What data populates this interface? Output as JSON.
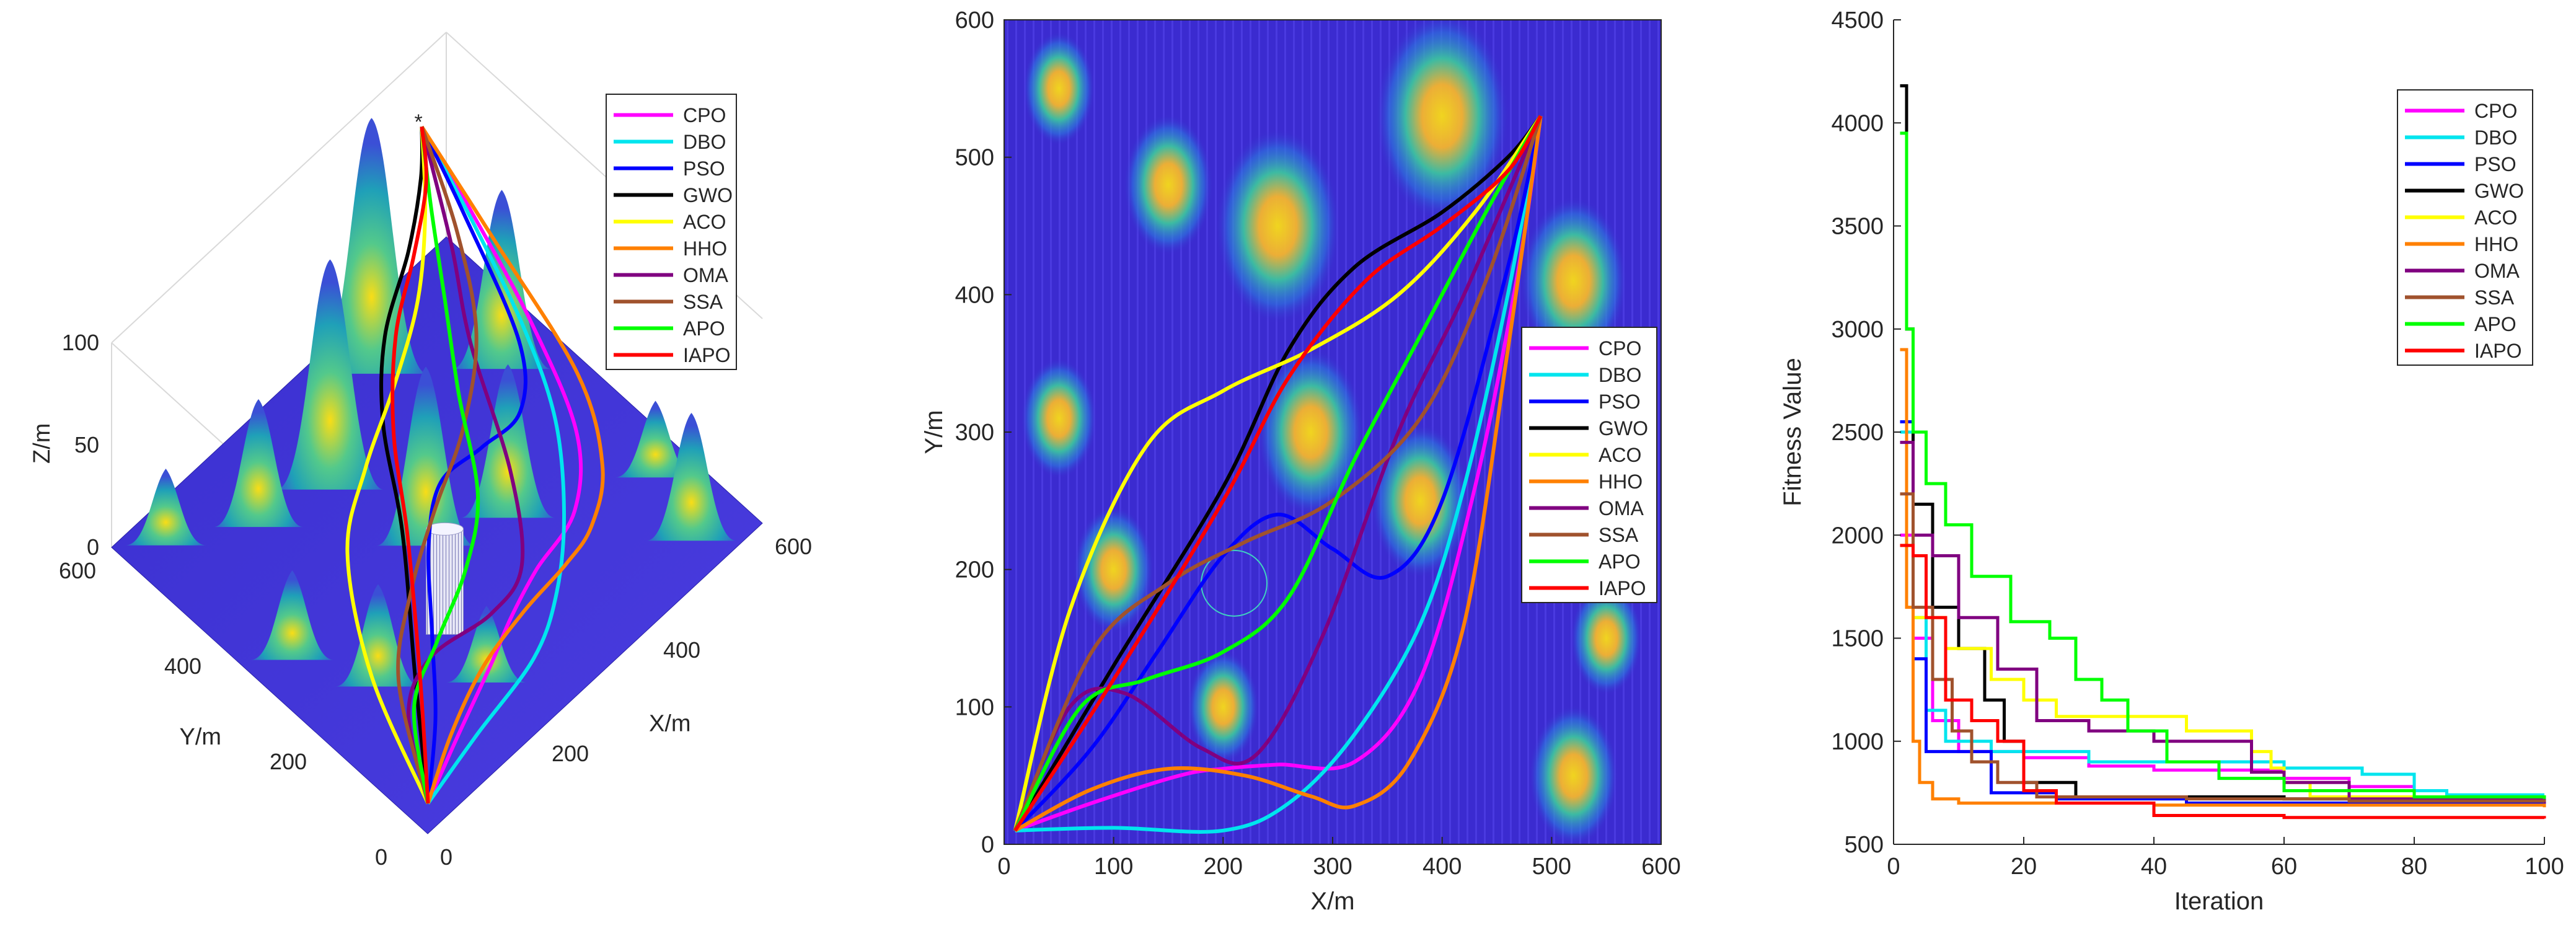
{
  "figure": {
    "legend_labels": [
      "CPO",
      "DBO",
      "PSO",
      "GWO",
      "ACO",
      "HHO",
      "OMA",
      "SSA",
      "APO",
      "IAPO"
    ],
    "series_colors": {
      "CPO": "#ff00ff",
      "DBO": "#00e5ee",
      "PSO": "#0000ff",
      "GWO": "#000000",
      "ACO": "#ffff00",
      "HHO": "#ff8000",
      "OMA": "#800080",
      "SSA": "#a0522d",
      "APO": "#00ff00",
      "IAPO": "#ff0000"
    },
    "terrain_low_color": "#3b2bd0",
    "terrain_high_color": "#f9dd16",
    "obstacle_color": "#e6e6f5"
  },
  "chart_data": [
    {
      "type": "surface3d",
      "xlabel": "X/m",
      "ylabel": "Y/m",
      "zlabel": "Z/m",
      "xticks": [
        "0",
        "200",
        "400",
        "600"
      ],
      "yticks": [
        "0",
        "200",
        "400",
        "600"
      ],
      "zticks": [
        "0",
        "50",
        "100"
      ],
      "xlim": [
        0,
        600
      ],
      "ylim": [
        0,
        600
      ],
      "zlim": [
        0,
        100
      ],
      "legend": [
        "CPO",
        "DBO",
        "PSO",
        "GWO",
        "ACO",
        "HHO",
        "OMA",
        "SSA",
        "APO",
        "IAPO"
      ],
      "legend_position": "top-right",
      "start": [
        10,
        10
      ],
      "goal": [
        490,
        530
      ],
      "peaks": [
        {
          "x": 50,
          "y": 550,
          "h": 30
        },
        {
          "x": 150,
          "y": 480,
          "h": 50
        },
        {
          "x": 250,
          "y": 450,
          "h": 90
        },
        {
          "x": 400,
          "y": 530,
          "h": 100
        },
        {
          "x": 520,
          "y": 410,
          "h": 70
        },
        {
          "x": 50,
          "y": 310,
          "h": 35
        },
        {
          "x": 280,
          "y": 300,
          "h": 70
        },
        {
          "x": 380,
          "y": 250,
          "h": 60
        },
        {
          "x": 100,
          "y": 200,
          "h": 40
        },
        {
          "x": 200,
          "y": 100,
          "h": 30
        },
        {
          "x": 520,
          "y": 50,
          "h": 50
        },
        {
          "x": 550,
          "y": 150,
          "h": 30
        }
      ]
    },
    {
      "type": "line",
      "xlabel": "X/m",
      "ylabel": "Y/m",
      "xlim": [
        0,
        600
      ],
      "ylim": [
        0,
        600
      ],
      "xticks": [
        "0",
        "100",
        "200",
        "300",
        "400",
        "500",
        "600"
      ],
      "yticks": [
        "0",
        "100",
        "200",
        "300",
        "400",
        "500",
        "600"
      ],
      "legend_position": "middle-right",
      "obstacle": {
        "cx": 210,
        "cy": 190,
        "r": 30
      },
      "series": [
        {
          "name": "CPO",
          "points": [
            [
              10,
              10
            ],
            [
              80,
              30
            ],
            [
              160,
              50
            ],
            [
              200,
              55
            ],
            [
              250,
              58
            ],
            [
              320,
              60
            ],
            [
              380,
              120
            ],
            [
              430,
              260
            ],
            [
              470,
              420
            ],
            [
              490,
              530
            ]
          ]
        },
        {
          "name": "DBO",
          "points": [
            [
              10,
              10
            ],
            [
              100,
              12
            ],
            [
              200,
              10
            ],
            [
              260,
              30
            ],
            [
              320,
              80
            ],
            [
              380,
              160
            ],
            [
              420,
              260
            ],
            [
              460,
              400
            ],
            [
              490,
              530
            ]
          ]
        },
        {
          "name": "PSO",
          "points": [
            [
              10,
              10
            ],
            [
              80,
              70
            ],
            [
              140,
              140
            ],
            [
              200,
              210
            ],
            [
              250,
              240
            ],
            [
              300,
              215
            ],
            [
              350,
              195
            ],
            [
              400,
              250
            ],
            [
              460,
              420
            ],
            [
              490,
              530
            ]
          ]
        },
        {
          "name": "GWO",
          "points": [
            [
              10,
              10
            ],
            [
              100,
              130
            ],
            [
              200,
              260
            ],
            [
              260,
              360
            ],
            [
              320,
              420
            ],
            [
              400,
              460
            ],
            [
              460,
              500
            ],
            [
              490,
              530
            ]
          ]
        },
        {
          "name": "ACO",
          "points": [
            [
              10,
              10
            ],
            [
              60,
              170
            ],
            [
              130,
              290
            ],
            [
              200,
              330
            ],
            [
              280,
              360
            ],
            [
              360,
              400
            ],
            [
              430,
              460
            ],
            [
              490,
              530
            ]
          ]
        },
        {
          "name": "HHO",
          "points": [
            [
              10,
              10
            ],
            [
              80,
              40
            ],
            [
              150,
              55
            ],
            [
              220,
              50
            ],
            [
              280,
              35
            ],
            [
              320,
              28
            ],
            [
              370,
              60
            ],
            [
              420,
              160
            ],
            [
              460,
              360
            ],
            [
              490,
              530
            ]
          ]
        },
        {
          "name": "OMA",
          "points": [
            [
              10,
              10
            ],
            [
              60,
              100
            ],
            [
              110,
              110
            ],
            [
              180,
              70
            ],
            [
              230,
              65
            ],
            [
              290,
              150
            ],
            [
              360,
              300
            ],
            [
              420,
              400
            ],
            [
              490,
              530
            ]
          ]
        },
        {
          "name": "SSA",
          "points": [
            [
              10,
              10
            ],
            [
              80,
              140
            ],
            [
              150,
              190
            ],
            [
              220,
              220
            ],
            [
              300,
              250
            ],
            [
              380,
              310
            ],
            [
              440,
              410
            ],
            [
              490,
              530
            ]
          ]
        },
        {
          "name": "APO",
          "points": [
            [
              10,
              10
            ],
            [
              70,
              100
            ],
            [
              130,
              120
            ],
            [
              200,
              140
            ],
            [
              260,
              180
            ],
            [
              320,
              280
            ],
            [
              380,
              370
            ],
            [
              440,
              460
            ],
            [
              490,
              530
            ]
          ]
        },
        {
          "name": "IAPO",
          "points": [
            [
              10,
              10
            ],
            [
              100,
              120
            ],
            [
              200,
              250
            ],
            [
              260,
              340
            ],
            [
              330,
              410
            ],
            [
              400,
              450
            ],
            [
              460,
              490
            ],
            [
              490,
              530
            ]
          ]
        }
      ]
    },
    {
      "type": "line",
      "xlabel": "Iteration",
      "ylabel": "Fitness Value",
      "xlim": [
        0,
        100
      ],
      "ylim": [
        500,
        4500
      ],
      "xticks": [
        "0",
        "20",
        "40",
        "60",
        "80",
        "100"
      ],
      "yticks": [
        "500",
        "1000",
        "1500",
        "2000",
        "2500",
        "3000",
        "3500",
        "4000",
        "4500"
      ],
      "legend_position": "top-right",
      "series": [
        {
          "name": "CPO",
          "points": [
            [
              1,
              2000
            ],
            [
              3,
              1500
            ],
            [
              6,
              1100
            ],
            [
              10,
              950
            ],
            [
              20,
              920
            ],
            [
              30,
              880
            ],
            [
              40,
              860
            ],
            [
              60,
              820
            ],
            [
              70,
              780
            ],
            [
              80,
              720
            ],
            [
              100,
              720
            ]
          ]
        },
        {
          "name": "DBO",
          "points": [
            [
              1,
              2500
            ],
            [
              3,
              1600
            ],
            [
              5,
              1150
            ],
            [
              8,
              1000
            ],
            [
              15,
              950
            ],
            [
              30,
              900
            ],
            [
              60,
              870
            ],
            [
              72,
              840
            ],
            [
              80,
              760
            ],
            [
              85,
              740
            ],
            [
              100,
              740
            ]
          ]
        },
        {
          "name": "PSO",
          "points": [
            [
              1,
              2550
            ],
            [
              3,
              1400
            ],
            [
              5,
              950
            ],
            [
              10,
              950
            ],
            [
              15,
              750
            ],
            [
              25,
              720
            ],
            [
              45,
              700
            ],
            [
              60,
              700
            ],
            [
              100,
              690
            ]
          ]
        },
        {
          "name": "GWO",
          "points": [
            [
              1,
              4180
            ],
            [
              2,
              3000
            ],
            [
              3,
              2150
            ],
            [
              6,
              1650
            ],
            [
              10,
              1450
            ],
            [
              14,
              1200
            ],
            [
              17,
              1000
            ],
            [
              20,
              800
            ],
            [
              28,
              730
            ],
            [
              60,
              720
            ],
            [
              100,
              710
            ]
          ]
        },
        {
          "name": "ACO",
          "points": [
            [
              1,
              1950
            ],
            [
              3,
              1600
            ],
            [
              8,
              1450
            ],
            [
              15,
              1300
            ],
            [
              20,
              1200
            ],
            [
              25,
              1120
            ],
            [
              38,
              1120
            ],
            [
              45,
              1050
            ],
            [
              55,
              950
            ],
            [
              58,
              870
            ],
            [
              60,
              800
            ],
            [
              64,
              730
            ],
            [
              100,
              700
            ]
          ]
        },
        {
          "name": "HHO",
          "points": [
            [
              1,
              2900
            ],
            [
              2,
              1650
            ],
            [
              3,
              1000
            ],
            [
              4,
              800
            ],
            [
              6,
              720
            ],
            [
              10,
              700
            ],
            [
              40,
              690
            ],
            [
              100,
              680
            ]
          ]
        },
        {
          "name": "OMA",
          "points": [
            [
              1,
              2450
            ],
            [
              3,
              2000
            ],
            [
              6,
              1900
            ],
            [
              10,
              1600
            ],
            [
              16,
              1350
            ],
            [
              22,
              1100
            ],
            [
              30,
              1050
            ],
            [
              40,
              1000
            ],
            [
              55,
              850
            ],
            [
              60,
              800
            ],
            [
              70,
              720
            ],
            [
              100,
              700
            ]
          ]
        },
        {
          "name": "SSA",
          "points": [
            [
              1,
              2200
            ],
            [
              3,
              1650
            ],
            [
              6,
              1300
            ],
            [
              9,
              1050
            ],
            [
              12,
              900
            ],
            [
              16,
              800
            ],
            [
              22,
              730
            ],
            [
              45,
              720
            ],
            [
              70,
              710
            ],
            [
              100,
              705
            ]
          ]
        },
        {
          "name": "APO",
          "points": [
            [
              1,
              3950
            ],
            [
              2,
              3000
            ],
            [
              3,
              2500
            ],
            [
              5,
              2250
            ],
            [
              8,
              2050
            ],
            [
              12,
              1800
            ],
            [
              18,
              1580
            ],
            [
              24,
              1500
            ],
            [
              28,
              1300
            ],
            [
              32,
              1200
            ],
            [
              36,
              1050
            ],
            [
              42,
              900
            ],
            [
              50,
              820
            ],
            [
              60,
              760
            ],
            [
              80,
              730
            ],
            [
              100,
              720
            ]
          ]
        },
        {
          "name": "IAPO",
          "points": [
            [
              1,
              1950
            ],
            [
              3,
              1900
            ],
            [
              5,
              1600
            ],
            [
              8,
              1200
            ],
            [
              12,
              1100
            ],
            [
              16,
              1000
            ],
            [
              20,
              760
            ],
            [
              25,
              700
            ],
            [
              40,
              640
            ],
            [
              60,
              630
            ],
            [
              100,
              625
            ]
          ]
        }
      ]
    }
  ]
}
